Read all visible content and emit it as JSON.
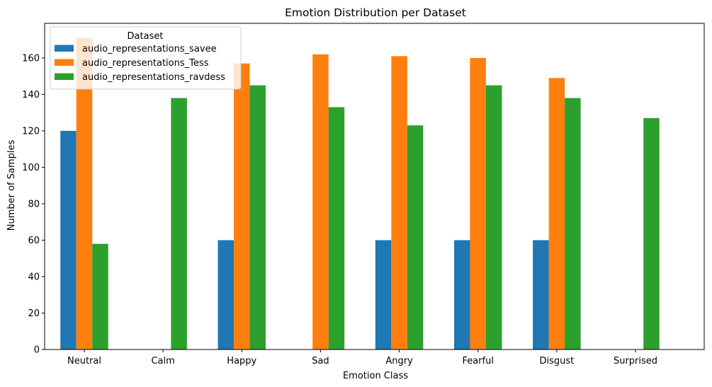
{
  "chart_data": {
    "type": "bar",
    "title": "Emotion Distribution per Dataset",
    "xlabel": "Emotion Class",
    "ylabel": "Number of Samples",
    "categories": [
      "Neutral",
      "Calm",
      "Happy",
      "Sad",
      "Angry",
      "Fearful",
      "Disgust",
      "Surprised"
    ],
    "series": [
      {
        "name": "audio_representations_savee",
        "color": "#1f77b4",
        "values": [
          120,
          0,
          60,
          0,
          60,
          60,
          60,
          0
        ]
      },
      {
        "name": "audio_representations_Tess",
        "color": "#ff7f0e",
        "values": [
          171,
          0,
          157,
          162,
          161,
          160,
          149,
          0
        ]
      },
      {
        "name": "audio_representations_ravdess",
        "color": "#2ca02c",
        "values": [
          58,
          138,
          145,
          133,
          123,
          145,
          138,
          127
        ]
      }
    ],
    "ylim": [
      0,
      179
    ],
    "yticks": [
      "0",
      "20",
      "40",
      "60",
      "80",
      "100",
      "120",
      "140",
      "160"
    ],
    "legend": {
      "title": "Dataset",
      "position": "upper-left"
    },
    "grid": false
  }
}
